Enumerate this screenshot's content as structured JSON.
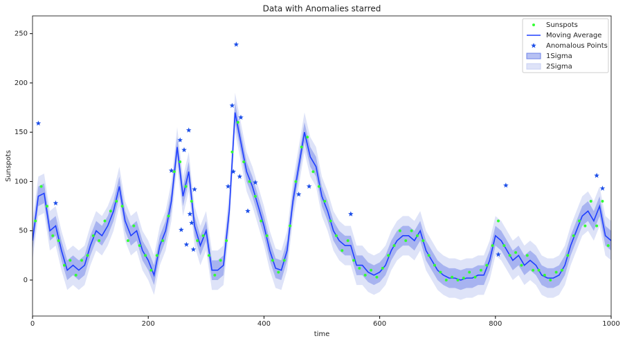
{
  "chart_data": {
    "type": "scatter",
    "title": "Data with Anomalies starred",
    "x_label": "time",
    "y_label": "Sunspots",
    "xlim": [
      0,
      1000
    ],
    "ylim": [
      -36.5,
      268
    ],
    "xticks": [
      0,
      200,
      400,
      600,
      800,
      1000
    ],
    "yticks": [
      0,
      50,
      100,
      150,
      200,
      250
    ],
    "legend": "upper right",
    "series": [
      {
        "name": "Sunspots",
        "type": "scatter",
        "marker": "dot",
        "color": "#33ff33",
        "x": [
          5,
          15,
          25,
          35,
          45,
          55,
          65,
          75,
          85,
          95,
          105,
          115,
          125,
          135,
          145,
          155,
          165,
          175,
          185,
          195,
          205,
          215,
          225,
          235,
          245,
          255,
          265,
          275,
          285,
          295,
          305,
          315,
          325,
          335,
          345,
          355,
          365,
          375,
          385,
          395,
          405,
          415,
          425,
          435,
          445,
          455,
          465,
          475,
          485,
          495,
          505,
          515,
          525,
          535,
          545,
          555,
          565,
          575,
          585,
          595,
          605,
          615,
          625,
          635,
          645,
          655,
          665,
          675,
          685,
          695,
          705,
          715,
          725,
          735,
          745,
          755,
          765,
          775,
          785,
          795,
          805,
          815,
          825,
          835,
          845,
          855,
          865,
          875,
          885,
          895,
          905,
          915,
          925,
          935,
          945,
          955,
          965,
          975,
          985,
          995
        ],
        "values": [
          60,
          95,
          75,
          45,
          40,
          15,
          20,
          5,
          20,
          25,
          45,
          40,
          60,
          70,
          80,
          75,
          40,
          55,
          35,
          25,
          10,
          25,
          40,
          65,
          110,
          120,
          95,
          80,
          40,
          45,
          25,
          5,
          20,
          40,
          130,
          160,
          120,
          100,
          85,
          60,
          45,
          20,
          8,
          20,
          55,
          100,
          135,
          145,
          110,
          95,
          80,
          60,
          45,
          30,
          40,
          20,
          12,
          5,
          10,
          3,
          12,
          25,
          35,
          50,
          40,
          50,
          45,
          40,
          25,
          15,
          8,
          0,
          3,
          0,
          2,
          8,
          3,
          10,
          15,
          35,
          60,
          35,
          25,
          28,
          15,
          25,
          10,
          10,
          5,
          0,
          8,
          10,
          25,
          45,
          60,
          55,
          80,
          55,
          80,
          35
        ]
      },
      {
        "name": "Moving Average",
        "type": "line",
        "color": "#1f3fff",
        "x": [
          0,
          10,
          20,
          30,
          40,
          50,
          60,
          70,
          80,
          90,
          100,
          110,
          120,
          130,
          140,
          150,
          160,
          170,
          180,
          190,
          200,
          210,
          220,
          230,
          240,
          250,
          260,
          270,
          280,
          290,
          300,
          310,
          320,
          330,
          340,
          350,
          360,
          370,
          380,
          390,
          400,
          410,
          420,
          430,
          440,
          450,
          460,
          470,
          480,
          490,
          500,
          510,
          520,
          530,
          540,
          550,
          560,
          570,
          580,
          590,
          600,
          610,
          620,
          630,
          640,
          650,
          660,
          670,
          680,
          690,
          700,
          710,
          720,
          730,
          740,
          750,
          760,
          770,
          780,
          790,
          800,
          810,
          820,
          830,
          840,
          850,
          860,
          870,
          880,
          890,
          900,
          910,
          920,
          930,
          940,
          950,
          960,
          970,
          980,
          990,
          1000
        ],
        "values": [
          40,
          85,
          88,
          50,
          55,
          30,
          10,
          15,
          10,
          15,
          35,
          50,
          45,
          55,
          70,
          95,
          60,
          45,
          50,
          30,
          20,
          5,
          35,
          50,
          80,
          135,
          85,
          110,
          55,
          35,
          50,
          10,
          10,
          15,
          70,
          170,
          140,
          110,
          95,
          75,
          55,
          30,
          12,
          10,
          30,
          80,
          115,
          150,
          125,
          115,
          85,
          70,
          50,
          40,
          35,
          35,
          15,
          15,
          8,
          5,
          8,
          15,
          30,
          40,
          45,
          45,
          40,
          50,
          30,
          20,
          10,
          5,
          2,
          2,
          0,
          2,
          2,
          5,
          5,
          20,
          45,
          40,
          30,
          20,
          25,
          15,
          20,
          15,
          5,
          2,
          2,
          5,
          15,
          35,
          50,
          65,
          70,
          60,
          75,
          45,
          40
        ]
      },
      {
        "name": "Anomalous Points",
        "type": "scatter",
        "marker": "star",
        "color": "#1c4ee8",
        "x": [
          10,
          40,
          240,
          255,
          257,
          262,
          266,
          270,
          272,
          275,
          278,
          280,
          338,
          345,
          347,
          352,
          358,
          360,
          372,
          385,
          460,
          478,
          550,
          805,
          818,
          975,
          985
        ],
        "values": [
          159,
          78,
          111,
          142,
          51,
          132,
          36,
          152,
          67,
          58,
          31,
          92,
          95,
          177,
          110,
          239,
          105,
          165,
          70,
          99,
          87,
          95,
          67,
          26,
          96,
          106,
          93
        ]
      },
      {
        "name": "1Sigma",
        "type": "band",
        "color": "#6f84e8",
        "opacity": 0.5,
        "x": [
          0,
          10,
          20,
          30,
          40,
          50,
          60,
          70,
          80,
          90,
          100,
          110,
          120,
          130,
          140,
          150,
          160,
          170,
          180,
          190,
          200,
          210,
          220,
          230,
          240,
          250,
          260,
          270,
          280,
          290,
          300,
          310,
          320,
          330,
          340,
          350,
          360,
          370,
          380,
          390,
          400,
          410,
          420,
          430,
          440,
          450,
          460,
          470,
          480,
          490,
          500,
          510,
          520,
          530,
          540,
          550,
          560,
          570,
          580,
          590,
          600,
          610,
          620,
          630,
          640,
          650,
          660,
          670,
          680,
          690,
          700,
          710,
          720,
          730,
          740,
          750,
          760,
          770,
          780,
          790,
          800,
          810,
          820,
          830,
          840,
          850,
          860,
          870,
          880,
          890,
          900,
          910,
          920,
          930,
          940,
          950,
          960,
          970,
          980,
          990,
          1000
        ],
        "upper": [
          50,
          95,
          98,
          60,
          65,
          40,
          20,
          25,
          20,
          25,
          45,
          60,
          55,
          65,
          80,
          105,
          70,
          55,
          60,
          40,
          30,
          15,
          45,
          60,
          90,
          145,
          95,
          120,
          65,
          45,
          60,
          20,
          20,
          25,
          80,
          180,
          150,
          120,
          105,
          85,
          65,
          40,
          22,
          20,
          40,
          90,
          125,
          160,
          135,
          125,
          95,
          80,
          60,
          50,
          45,
          45,
          25,
          25,
          18,
          15,
          18,
          25,
          40,
          50,
          55,
          55,
          50,
          60,
          40,
          30,
          20,
          15,
          12,
          12,
          10,
          12,
          12,
          15,
          15,
          30,
          55,
          50,
          40,
          30,
          35,
          25,
          30,
          25,
          15,
          12,
          12,
          15,
          25,
          45,
          60,
          75,
          80,
          70,
          85,
          55,
          50
        ],
        "lower": [
          30,
          75,
          78,
          40,
          45,
          20,
          0,
          5,
          0,
          5,
          25,
          40,
          35,
          45,
          60,
          85,
          50,
          35,
          40,
          20,
          10,
          -5,
          25,
          40,
          70,
          125,
          75,
          100,
          45,
          25,
          40,
          0,
          0,
          5,
          60,
          160,
          130,
          100,
          85,
          65,
          45,
          20,
          2,
          0,
          20,
          70,
          105,
          140,
          115,
          105,
          75,
          60,
          40,
          30,
          25,
          25,
          5,
          5,
          -2,
          -5,
          -2,
          5,
          20,
          30,
          35,
          35,
          30,
          40,
          20,
          10,
          0,
          -5,
          -8,
          -8,
          -10,
          -8,
          -8,
          -5,
          -5,
          10,
          35,
          30,
          20,
          10,
          15,
          5,
          10,
          5,
          -5,
          -8,
          -8,
          -5,
          5,
          25,
          40,
          55,
          60,
          50,
          65,
          35,
          30
        ]
      },
      {
        "name": "2Sigma",
        "type": "band",
        "color": "#c8d0f4",
        "opacity": 0.6,
        "x": [
          0,
          10,
          20,
          30,
          40,
          50,
          60,
          70,
          80,
          90,
          100,
          110,
          120,
          130,
          140,
          150,
          160,
          170,
          180,
          190,
          200,
          210,
          220,
          230,
          240,
          250,
          260,
          270,
          280,
          290,
          300,
          310,
          320,
          330,
          340,
          350,
          360,
          370,
          380,
          390,
          400,
          410,
          420,
          430,
          440,
          450,
          460,
          470,
          480,
          490,
          500,
          510,
          520,
          530,
          540,
          550,
          560,
          570,
          580,
          590,
          600,
          610,
          620,
          630,
          640,
          650,
          660,
          670,
          680,
          690,
          700,
          710,
          720,
          730,
          740,
          750,
          760,
          770,
          780,
          790,
          800,
          810,
          820,
          830,
          840,
          850,
          860,
          870,
          880,
          890,
          900,
          910,
          920,
          930,
          940,
          950,
          960,
          970,
          980,
          990,
          1000
        ],
        "upper": [
          60,
          105,
          108,
          70,
          75,
          50,
          30,
          35,
          30,
          35,
          55,
          70,
          65,
          75,
          90,
          115,
          80,
          65,
          70,
          50,
          40,
          25,
          55,
          70,
          100,
          155,
          105,
          130,
          75,
          55,
          70,
          30,
          30,
          35,
          90,
          190,
          160,
          130,
          115,
          95,
          75,
          50,
          32,
          30,
          50,
          100,
          135,
          170,
          145,
          135,
          105,
          90,
          70,
          60,
          55,
          55,
          35,
          35,
          28,
          25,
          28,
          35,
          50,
          60,
          65,
          65,
          60,
          70,
          50,
          40,
          30,
          25,
          22,
          22,
          20,
          22,
          22,
          25,
          25,
          40,
          65,
          60,
          50,
          40,
          45,
          35,
          40,
          35,
          25,
          22,
          22,
          25,
          35,
          55,
          70,
          85,
          90,
          80,
          95,
          65,
          60
        ],
        "lower": [
          20,
          65,
          68,
          30,
          35,
          10,
          -10,
          -5,
          -10,
          -5,
          15,
          30,
          25,
          35,
          50,
          75,
          40,
          25,
          30,
          10,
          0,
          -15,
          15,
          30,
          60,
          115,
          65,
          90,
          35,
          15,
          30,
          -10,
          -10,
          -5,
          50,
          150,
          120,
          90,
          75,
          55,
          35,
          10,
          -8,
          -10,
          10,
          60,
          95,
          130,
          105,
          95,
          65,
          50,
          30,
          20,
          15,
          15,
          -5,
          -5,
          -12,
          -15,
          -12,
          -5,
          10,
          20,
          25,
          25,
          20,
          30,
          10,
          0,
          -10,
          -15,
          -18,
          -18,
          -20,
          -18,
          -18,
          -15,
          -15,
          0,
          25,
          20,
          10,
          0,
          5,
          -5,
          0,
          -5,
          -15,
          -18,
          -18,
          -15,
          -5,
          15,
          30,
          45,
          50,
          40,
          55,
          25,
          20
        ]
      }
    ]
  }
}
